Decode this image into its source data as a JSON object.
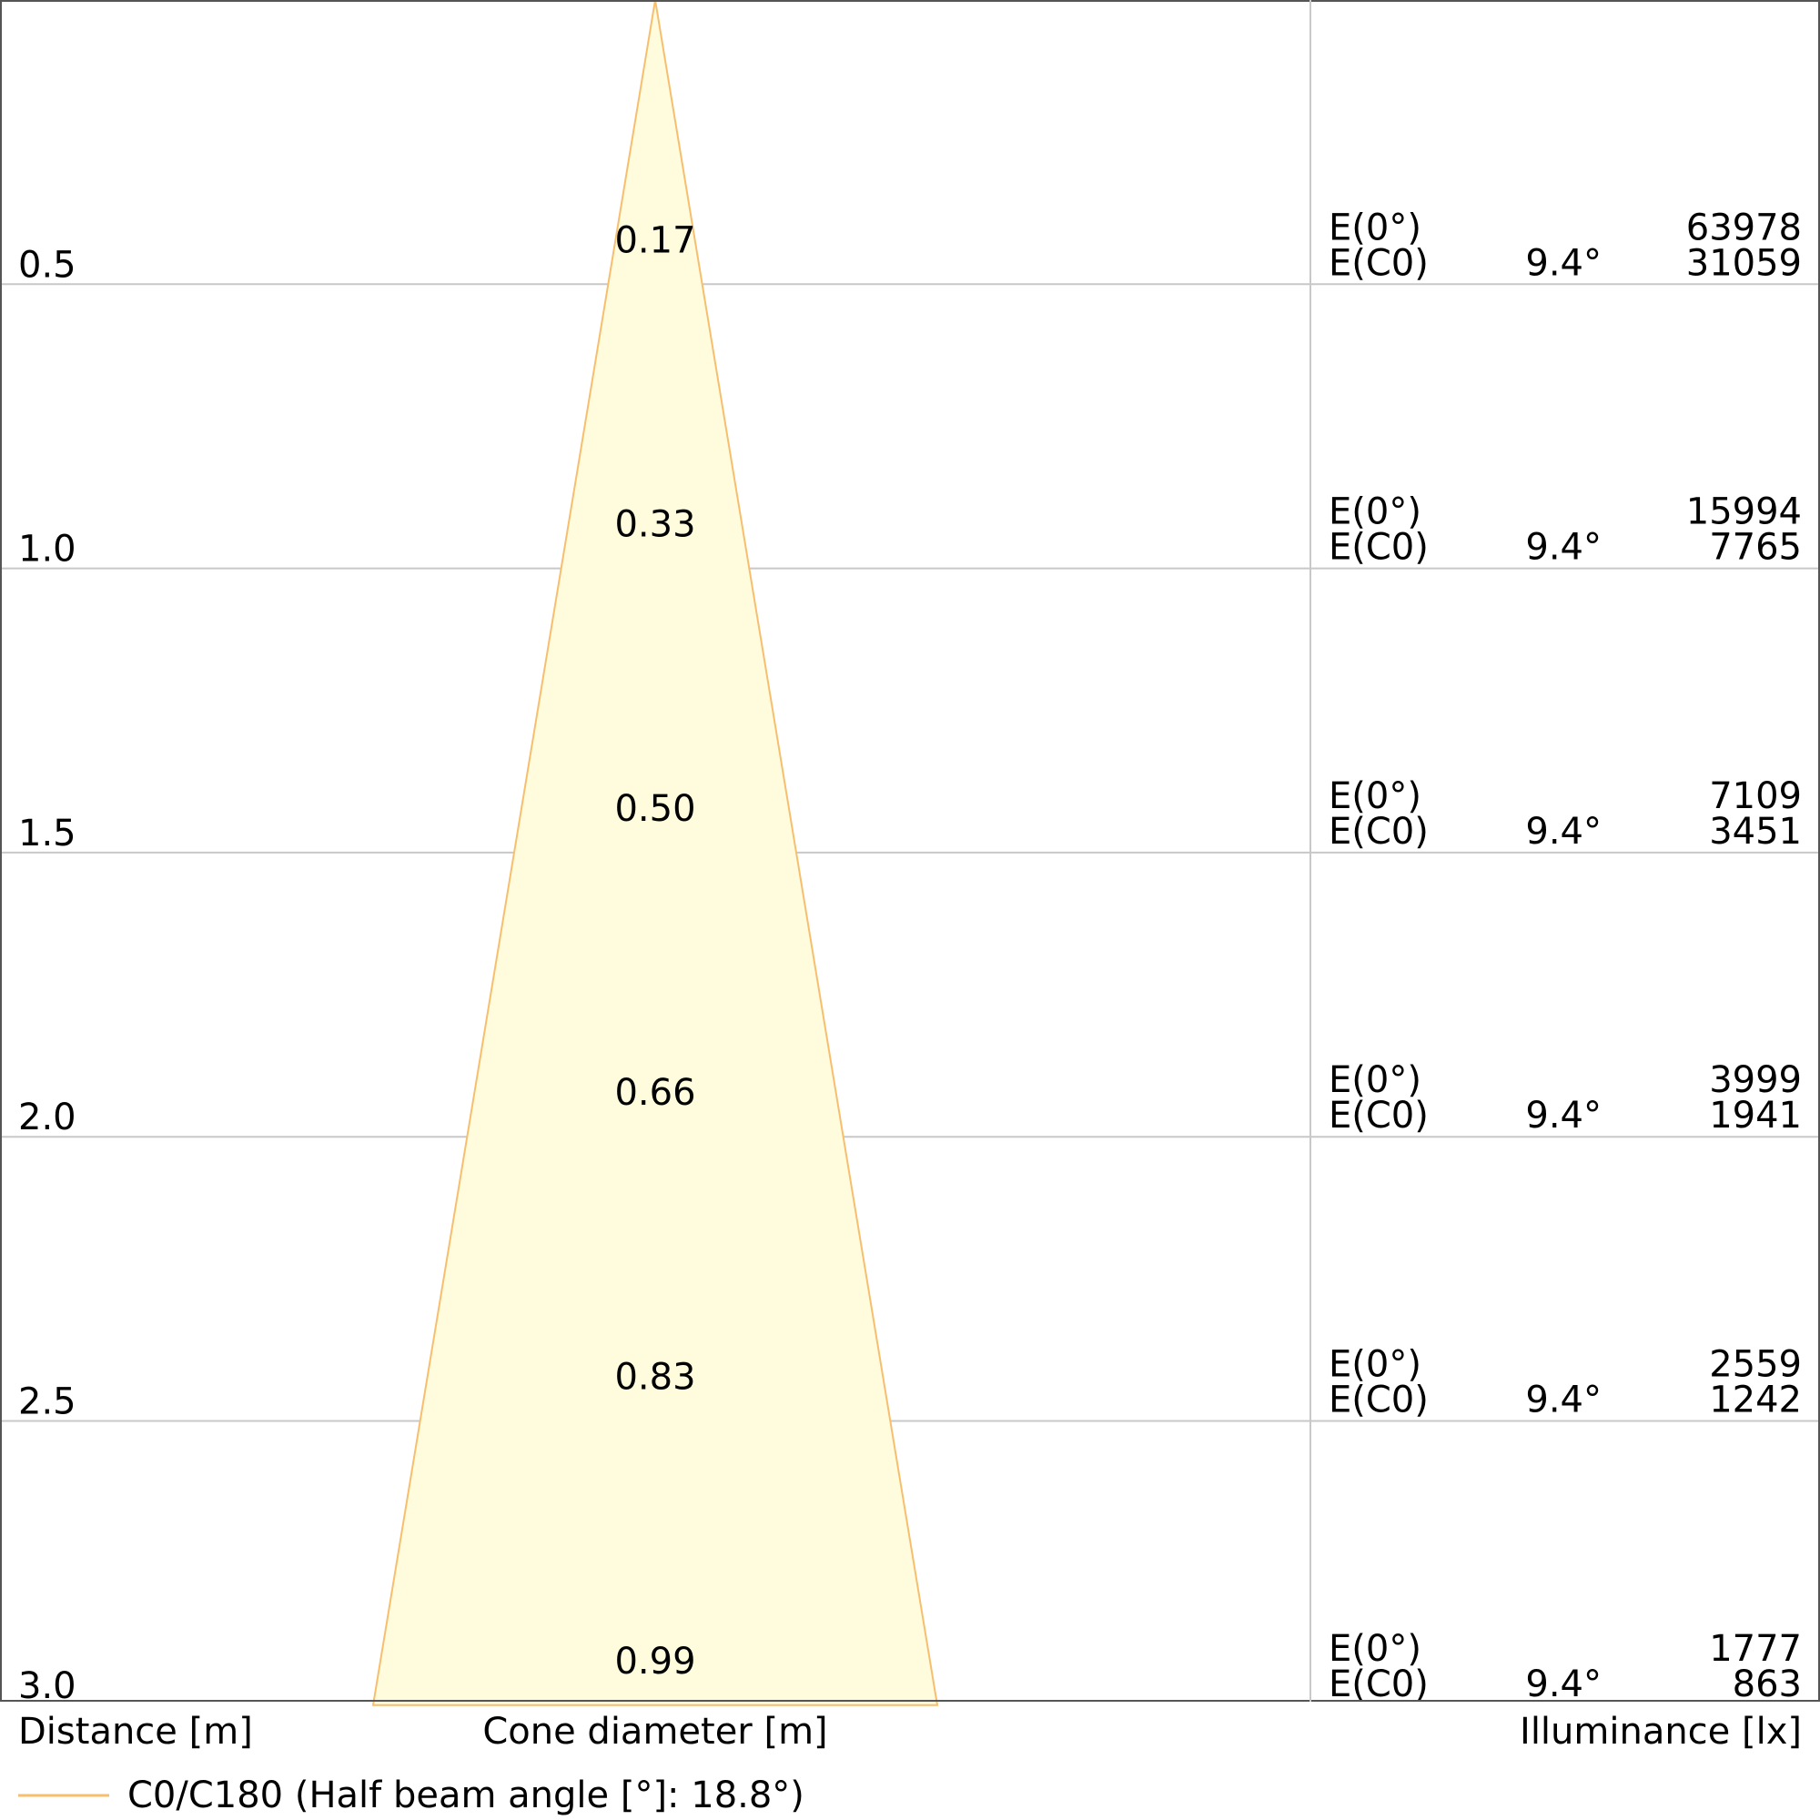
{
  "chart_data": {
    "type": "cone-diagram",
    "xlabel": "Distance [m]",
    "center_label": "Cone diameter [m]",
    "ylabel": "Illuminance [lx]",
    "legend": "C0/C180 (Half beam angle [°]: 18.8°)",
    "half_beam_angle": 18.8,
    "colors": {
      "cone_fill": "#fefcdc",
      "cone_stroke": "#f7be6e",
      "grid": "#c8c8c8",
      "frame": "#555555"
    },
    "rows": [
      {
        "distance": "0.5",
        "diameter": "0.17",
        "e_center_label": "E(0°)",
        "e_center": "63978",
        "e_c0_label": "E(C0)",
        "angle": "9.4°",
        "e_c0": "31059"
      },
      {
        "distance": "1.0",
        "diameter": "0.33",
        "e_center_label": "E(0°)",
        "e_center": "15994",
        "e_c0_label": "E(C0)",
        "angle": "9.4°",
        "e_c0": "7765"
      },
      {
        "distance": "1.5",
        "diameter": "0.50",
        "e_center_label": "E(0°)",
        "e_center": "7109",
        "e_c0_label": "E(C0)",
        "angle": "9.4°",
        "e_c0": "3451"
      },
      {
        "distance": "2.0",
        "diameter": "0.66",
        "e_center_label": "E(0°)",
        "e_center": "3999",
        "e_c0_label": "E(C0)",
        "angle": "9.4°",
        "e_c0": "1941"
      },
      {
        "distance": "2.5",
        "diameter": "0.83",
        "e_center_label": "E(0°)",
        "e_center": "2559",
        "e_c0_label": "E(C0)",
        "angle": "9.4°",
        "e_c0": "1242"
      },
      {
        "distance": "3.0",
        "diameter": "0.99",
        "e_center_label": "E(0°)",
        "e_center": "1777",
        "e_c0_label": "E(C0)",
        "angle": "9.4°",
        "e_c0": "863"
      }
    ]
  }
}
